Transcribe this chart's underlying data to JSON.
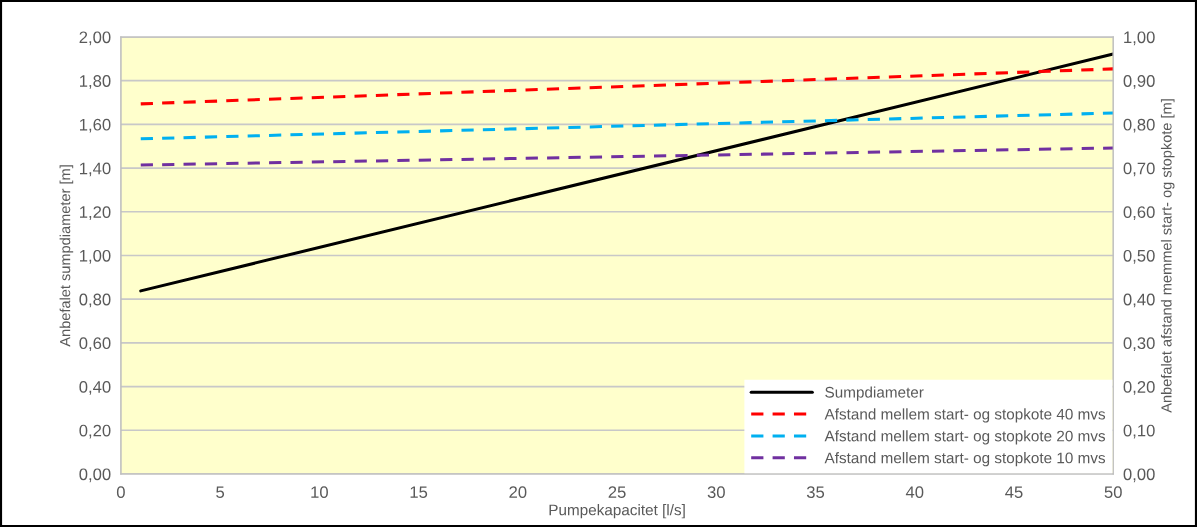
{
  "chart_data": {
    "type": "line",
    "xlabel": "Pumpekapacitet [l/s]",
    "ylabel": "Anbefalet sumpdiameter [m]",
    "y2label": "Anbefalet afstand memmel start- og stopkote [m]",
    "x": [
      1,
      50
    ],
    "series": [
      {
        "name": "Sumpdiameter",
        "color": "#000000",
        "line_style": "solid",
        "values": [
          0.838,
          1.922
        ]
      },
      {
        "name": "Afstand mellem start- og stopkote 40 mvs",
        "color": "#ff0000",
        "line_style": "dashed",
        "axis": "y2",
        "values": [
          0.847,
          0.927
        ]
      },
      {
        "name": "Afstand mellem start- og stopkote 20 mvs",
        "color": "#00b0f0",
        "line_style": "dashed",
        "axis": "y2",
        "values": [
          0.767,
          0.826
        ]
      },
      {
        "name": "Afstand mellem start- og stopkote 10 mvs",
        "color": "#7030a0",
        "line_style": "dashed",
        "axis": "y2",
        "values": [
          0.707,
          0.746
        ]
      }
    ],
    "xlim": [
      0,
      50
    ],
    "xticks": [
      0,
      5,
      10,
      15,
      20,
      25,
      30,
      35,
      40,
      45,
      50
    ],
    "ylim": [
      0,
      2
    ],
    "yticks": [
      {
        "value": 0,
        "label": "0,00"
      },
      {
        "value": 0.2,
        "label": "0,20"
      },
      {
        "value": 0.4,
        "label": "0,40"
      },
      {
        "value": 0.6,
        "label": "0,60"
      },
      {
        "value": 0.8,
        "label": "0,80"
      },
      {
        "value": 1.0,
        "label": "1,00"
      },
      {
        "value": 1.2,
        "label": "1,20"
      },
      {
        "value": 1.4,
        "label": "1,40"
      },
      {
        "value": 1.6,
        "label": "1,60"
      },
      {
        "value": 1.8,
        "label": "1,80"
      },
      {
        "value": 2.0,
        "label": "2,00"
      }
    ],
    "y2lim": [
      0,
      1
    ],
    "y2ticks": [
      {
        "value": 0,
        "label": "0,00"
      },
      {
        "value": 0.1,
        "label": "0,10"
      },
      {
        "value": 0.2,
        "label": "0,20"
      },
      {
        "value": 0.3,
        "label": "0,30"
      },
      {
        "value": 0.4,
        "label": "0,40"
      },
      {
        "value": 0.5,
        "label": "0,50"
      },
      {
        "value": 0.6,
        "label": "0,60"
      },
      {
        "value": 0.7,
        "label": "0,70"
      },
      {
        "value": 0.8,
        "label": "0,80"
      },
      {
        "value": 0.9,
        "label": "0,90"
      },
      {
        "value": 1.0,
        "label": "1,00"
      }
    ],
    "grid": "y",
    "legend": "bottom right",
    "marker": "none"
  }
}
